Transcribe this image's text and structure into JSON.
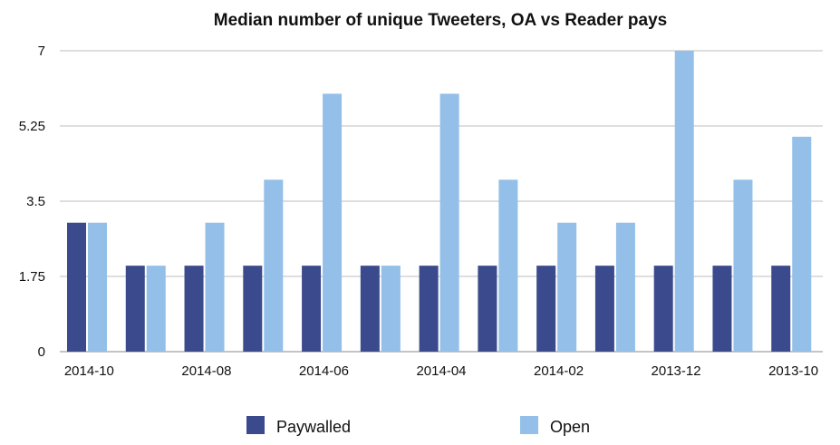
{
  "chart_data": {
    "type": "bar",
    "title": "Median number of unique Tweeters, OA vs Reader pays",
    "xlabel": "",
    "ylabel": "",
    "ylim": [
      0,
      7
    ],
    "yticks": [
      "0",
      "1.75",
      "3.5",
      "5.25",
      "7"
    ],
    "ytick_values": [
      0,
      1.75,
      3.5,
      5.25,
      7
    ],
    "categories": [
      "2014-10",
      "2014-09",
      "2014-08",
      "2014-07",
      "2014-06",
      "2014-05",
      "2014-04",
      "2014-03",
      "2014-02",
      "2014-01",
      "2013-12",
      "2013-11",
      "2013-10"
    ],
    "xtick_labels": [
      "2014-10",
      "",
      "2014-08",
      "",
      "2014-06",
      "",
      "2014-04",
      "",
      "2014-02",
      "",
      "2013-12",
      "",
      "2013-10"
    ],
    "grid": true,
    "legend_position": "bottom",
    "series": [
      {
        "name": "Paywalled",
        "color": "#3b4a8c",
        "values": [
          3,
          2,
          2,
          2,
          2,
          2,
          2,
          2,
          2,
          2,
          2,
          2,
          2
        ]
      },
      {
        "name": "Open",
        "color": "#93bfe8",
        "values": [
          3,
          2,
          3,
          4,
          6,
          2,
          6,
          4,
          3,
          3,
          7,
          4,
          5
        ]
      }
    ]
  }
}
